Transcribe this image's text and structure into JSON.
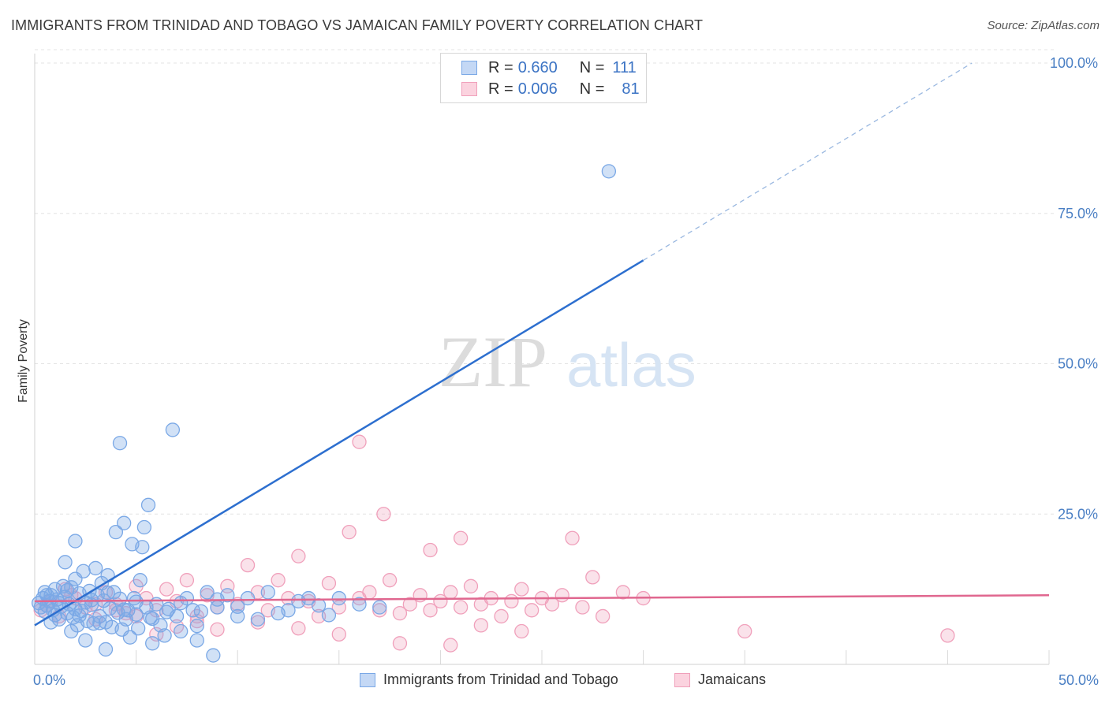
{
  "header": {
    "title": "IMMIGRANTS FROM TRINIDAD AND TOBAGO VS JAMAICAN FAMILY POVERTY CORRELATION CHART",
    "source": "Source: ZipAtlas.com"
  },
  "watermark": {
    "zip": "ZIP",
    "atlas": "atlas"
  },
  "legend_top": [
    {
      "r_label": "R =",
      "r_value": "0.660",
      "n_label": "N =",
      "n_value": "111",
      "color": "#7aa8e6"
    },
    {
      "r_label": "R =",
      "r_value": "0.006",
      "n_label": "N =",
      "n_value": "81",
      "color": "#f0a0bb"
    }
  ],
  "chart_data": {
    "type": "scatter",
    "title": "IMMIGRANTS FROM TRINIDAD AND TOBAGO VS JAMAICAN FAMILY POVERTY CORRELATION CHART",
    "xlabel": "",
    "ylabel": "Family Poverty",
    "xlim": [
      0,
      50
    ],
    "ylim": [
      0,
      100
    ],
    "x_tick_labels": [
      "0.0%",
      "50.0%"
    ],
    "y_tick_labels": [
      "100.0%",
      "75.0%",
      "50.0%",
      "25.0%"
    ],
    "y_tick_values": [
      100,
      75,
      50,
      25
    ],
    "grid": true,
    "legend_placement": "bottom",
    "series": [
      {
        "name": "Immigrants from Trinidad and Tobago",
        "color": "#7aa8e6",
        "line_color": "#2d6fcf",
        "trend": {
          "x": [
            0,
            30
          ],
          "y": [
            6.5,
            67.2
          ],
          "dashed_to": [
            46.2,
            100
          ]
        },
        "points": [
          [
            0.2,
            10.2
          ],
          [
            0.3,
            9.5
          ],
          [
            0.4,
            11.0
          ],
          [
            0.5,
            8.8
          ],
          [
            0.5,
            12.0
          ],
          [
            0.6,
            9.8
          ],
          [
            0.7,
            10.5
          ],
          [
            0.8,
            11.5
          ],
          [
            0.9,
            9.0
          ],
          [
            1.0,
            12.5
          ],
          [
            1.0,
            8.2
          ],
          [
            1.1,
            10.8
          ],
          [
            1.2,
            7.5
          ],
          [
            1.3,
            9.6
          ],
          [
            1.4,
            13.0
          ],
          [
            1.5,
            11.2
          ],
          [
            1.6,
            8.5
          ],
          [
            1.7,
            10.0
          ],
          [
            1.8,
            12.8
          ],
          [
            1.9,
            7.8
          ],
          [
            2.0,
            9.2
          ],
          [
            2.0,
            14.2
          ],
          [
            2.1,
            6.5
          ],
          [
            2.2,
            11.8
          ],
          [
            2.3,
            8.9
          ],
          [
            2.4,
            15.5
          ],
          [
            2.5,
            10.3
          ],
          [
            2.6,
            7.2
          ],
          [
            2.7,
            12.2
          ],
          [
            2.8,
            9.9
          ],
          [
            2.9,
            6.8
          ],
          [
            3.0,
            16.0
          ],
          [
            3.1,
            11.5
          ],
          [
            3.2,
            8.0
          ],
          [
            3.3,
            13.5
          ],
          [
            3.4,
            10.6
          ],
          [
            3.5,
            7.0
          ],
          [
            3.6,
            14.8
          ],
          [
            3.7,
            9.3
          ],
          [
            3.8,
            6.2
          ],
          [
            3.9,
            12.0
          ],
          [
            4.0,
            22.0
          ],
          [
            4.1,
            8.6
          ],
          [
            4.2,
            10.9
          ],
          [
            4.3,
            5.8
          ],
          [
            4.4,
            23.5
          ],
          [
            4.5,
            7.5
          ],
          [
            4.6,
            9.0
          ],
          [
            4.7,
            4.5
          ],
          [
            4.8,
            20.0
          ],
          [
            4.9,
            11.0
          ],
          [
            5.0,
            8.3
          ],
          [
            5.1,
            6.0
          ],
          [
            5.2,
            14.0
          ],
          [
            5.3,
            19.5
          ],
          [
            5.4,
            22.8
          ],
          [
            5.5,
            9.5
          ],
          [
            5.6,
            26.5
          ],
          [
            5.7,
            7.8
          ],
          [
            5.8,
            3.5
          ],
          [
            6.0,
            10.0
          ],
          [
            6.2,
            6.5
          ],
          [
            6.4,
            4.8
          ],
          [
            6.6,
            9.2
          ],
          [
            6.8,
            39.0
          ],
          [
            7.0,
            8.0
          ],
          [
            7.2,
            5.5
          ],
          [
            7.5,
            11.0
          ],
          [
            7.8,
            9.0
          ],
          [
            8.0,
            4.0
          ],
          [
            8.2,
            8.8
          ],
          [
            8.5,
            12.0
          ],
          [
            8.8,
            1.5
          ],
          [
            9.0,
            9.5
          ],
          [
            9.5,
            11.5
          ],
          [
            10.0,
            8.0
          ],
          [
            10.5,
            11.0
          ],
          [
            11.0,
            7.5
          ],
          [
            11.5,
            12.0
          ],
          [
            12.0,
            8.5
          ],
          [
            12.5,
            9.0
          ],
          [
            13.0,
            10.5
          ],
          [
            13.5,
            11.0
          ],
          [
            14.0,
            9.8
          ],
          [
            14.5,
            8.2
          ],
          [
            15.0,
            11.0
          ],
          [
            16.0,
            10.0
          ],
          [
            17.0,
            9.5
          ],
          [
            2.0,
            20.5
          ],
          [
            1.5,
            17.0
          ],
          [
            3.5,
            2.5
          ],
          [
            2.5,
            4.0
          ],
          [
            1.8,
            5.5
          ],
          [
            4.2,
            36.8
          ],
          [
            0.8,
            7.0
          ],
          [
            0.6,
            11.5
          ],
          [
            1.2,
            10.2
          ],
          [
            1.6,
            12.3
          ],
          [
            2.2,
            8.1
          ],
          [
            2.8,
            10.7
          ],
          [
            3.2,
            6.9
          ],
          [
            3.6,
            11.9
          ],
          [
            4.4,
            9.1
          ],
          [
            5.0,
            10.4
          ],
          [
            5.8,
            7.6
          ],
          [
            6.5,
            8.7
          ],
          [
            7.2,
            10.2
          ],
          [
            8.0,
            6.4
          ],
          [
            9.0,
            10.8
          ],
          [
            10.0,
            9.6
          ],
          [
            28.3,
            82.0
          ]
        ]
      },
      {
        "name": "Jamaicans",
        "color": "#f0a0bb",
        "line_color": "#e0678f",
        "trend": {
          "x": [
            0,
            50
          ],
          "y": [
            10.5,
            11.5
          ]
        },
        "points": [
          [
            0.3,
            9.0
          ],
          [
            0.8,
            10.5
          ],
          [
            1.2,
            8.0
          ],
          [
            1.8,
            11.5
          ],
          [
            2.5,
            9.5
          ],
          [
            3.0,
            7.5
          ],
          [
            3.5,
            12.0
          ],
          [
            4.0,
            10.0
          ],
          [
            4.5,
            8.5
          ],
          [
            5.0,
            13.0
          ],
          [
            5.5,
            11.0
          ],
          [
            6.0,
            9.0
          ],
          [
            6.5,
            12.5
          ],
          [
            7.0,
            10.5
          ],
          [
            7.5,
            14.0
          ],
          [
            8.0,
            8.0
          ],
          [
            8.5,
            11.5
          ],
          [
            9.0,
            9.5
          ],
          [
            9.5,
            13.0
          ],
          [
            10.0,
            10.0
          ],
          [
            10.5,
            16.5
          ],
          [
            11.0,
            12.0
          ],
          [
            11.5,
            9.0
          ],
          [
            12.0,
            14.0
          ],
          [
            12.5,
            11.0
          ],
          [
            13.0,
            18.0
          ],
          [
            13.5,
            10.5
          ],
          [
            14.0,
            8.0
          ],
          [
            14.5,
            13.5
          ],
          [
            15.0,
            9.5
          ],
          [
            15.5,
            22.0
          ],
          [
            16.0,
            11.0
          ],
          [
            16.5,
            12.0
          ],
          [
            17.0,
            9.0
          ],
          [
            17.5,
            14.0
          ],
          [
            18.0,
            8.5
          ],
          [
            18.5,
            10.0
          ],
          [
            19.0,
            11.5
          ],
          [
            19.5,
            9.0
          ],
          [
            20.0,
            10.5
          ],
          [
            20.5,
            12.0
          ],
          [
            21.0,
            9.5
          ],
          [
            21.5,
            13.0
          ],
          [
            22.0,
            10.0
          ],
          [
            22.5,
            11.0
          ],
          [
            23.0,
            8.0
          ],
          [
            23.5,
            10.5
          ],
          [
            24.0,
            12.5
          ],
          [
            24.5,
            9.0
          ],
          [
            25.0,
            11.0
          ],
          [
            25.5,
            10.0
          ],
          [
            26.0,
            11.5
          ],
          [
            27.0,
            9.5
          ],
          [
            28.0,
            8.0
          ],
          [
            29.0,
            12.0
          ],
          [
            30.0,
            11.0
          ],
          [
            16.0,
            37.0
          ],
          [
            17.2,
            25.0
          ],
          [
            19.5,
            19.0
          ],
          [
            21.0,
            21.0
          ],
          [
            26.5,
            21.0
          ],
          [
            27.5,
            14.5
          ],
          [
            35.0,
            5.5
          ],
          [
            45.0,
            4.8
          ],
          [
            22.0,
            6.5
          ],
          [
            24.0,
            5.5
          ],
          [
            18.0,
            3.5
          ],
          [
            20.5,
            3.2
          ],
          [
            15.0,
            5.0
          ],
          [
            13.0,
            6.0
          ],
          [
            11.0,
            7.0
          ],
          [
            9.0,
            5.8
          ],
          [
            8.0,
            7.2
          ],
          [
            7.0,
            6.3
          ],
          [
            6.0,
            5.0
          ],
          [
            5.0,
            8.0
          ],
          [
            4.0,
            9.0
          ],
          [
            3.0,
            10.0
          ],
          [
            2.0,
            11.0
          ],
          [
            1.5,
            12.5
          ],
          [
            0.6,
            9.8
          ]
        ]
      }
    ]
  }
}
